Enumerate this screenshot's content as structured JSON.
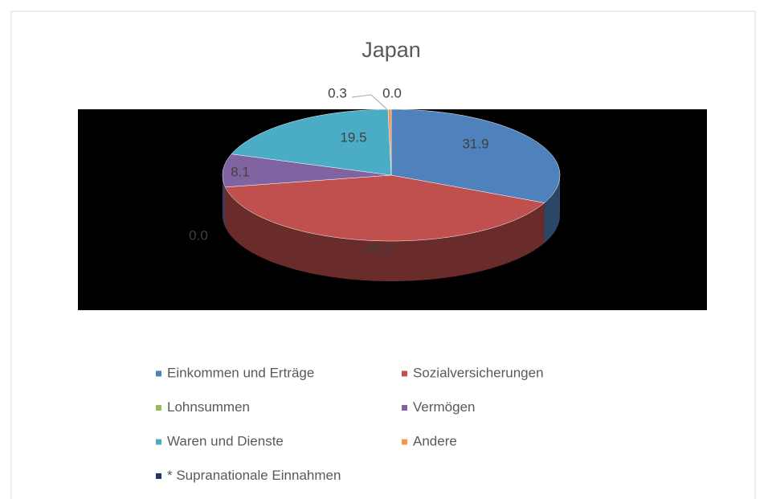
{
  "chart_data": {
    "type": "pie",
    "title": "Japan",
    "categories": [
      "Einkommen und Erträge",
      "Sozialversicherungen",
      "Lohnsummen",
      "Vermögen",
      "Waren und Dienste",
      "Andere",
      "* Supranationale Einnahmen"
    ],
    "values": [
      31.9,
      40.2,
      0.0,
      8.1,
      19.5,
      0.3,
      0.0
    ],
    "value_labels": [
      "31.9",
      "40.2",
      "0.0",
      "8.1",
      "19.5",
      "0.3",
      "0.0"
    ],
    "colors": [
      "#4f81bd",
      "#c0504d",
      "#9bbb59",
      "#8064a2",
      "#4bacc6",
      "#f79646",
      "#1f3864"
    ],
    "legend": "bottom"
  }
}
